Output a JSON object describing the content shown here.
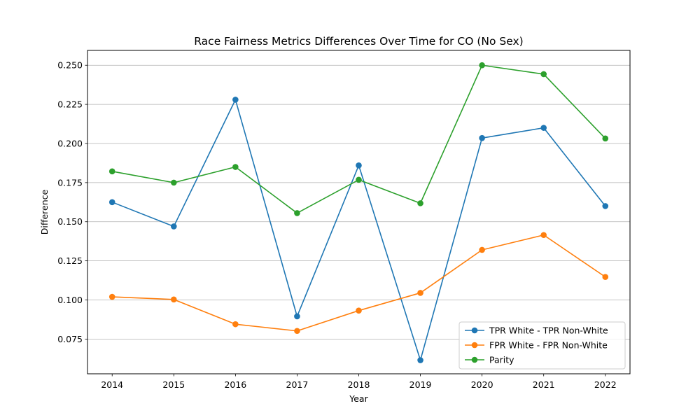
{
  "chart_data": {
    "type": "line",
    "title": "Race Fairness Metrics Differences Over Time for CO (No Sex)",
    "xlabel": "Year",
    "ylabel": "Difference",
    "x": [
      2014,
      2015,
      2016,
      2017,
      2018,
      2019,
      2020,
      2021,
      2022
    ],
    "x_tick_labels": [
      "2014",
      "2015",
      "2016",
      "2017",
      "2018",
      "2019",
      "2020",
      "2021",
      "2022"
    ],
    "y_ticks": [
      0.075,
      0.1,
      0.125,
      0.15,
      0.175,
      0.2,
      0.225,
      0.25
    ],
    "y_tick_labels": [
      "0.075",
      "0.100",
      "0.125",
      "0.150",
      "0.175",
      "0.200",
      "0.225",
      "0.250"
    ],
    "xlim": [
      2013.6,
      2022.4
    ],
    "ylim": [
      0.0528,
      0.2595
    ],
    "grid": "horizontal",
    "legend_position": "lower-right",
    "series": [
      {
        "name": "TPR White - TPR Non-White",
        "color": "#1f77b4",
        "values": [
          0.1625,
          0.147,
          0.228,
          0.0895,
          0.186,
          0.0615,
          0.2035,
          0.21,
          0.16
        ]
      },
      {
        "name": "FPR White - FPR Non-White",
        "color": "#ff7f0e",
        "values": [
          0.102,
          0.1003,
          0.0845,
          0.0802,
          0.0932,
          0.1045,
          0.132,
          0.1415,
          0.1147
        ]
      },
      {
        "name": "Parity",
        "color": "#2ca02c",
        "values": [
          0.1822,
          0.175,
          0.185,
          0.1555,
          0.1768,
          0.1618,
          0.25,
          0.2443,
          0.2032
        ]
      }
    ]
  }
}
